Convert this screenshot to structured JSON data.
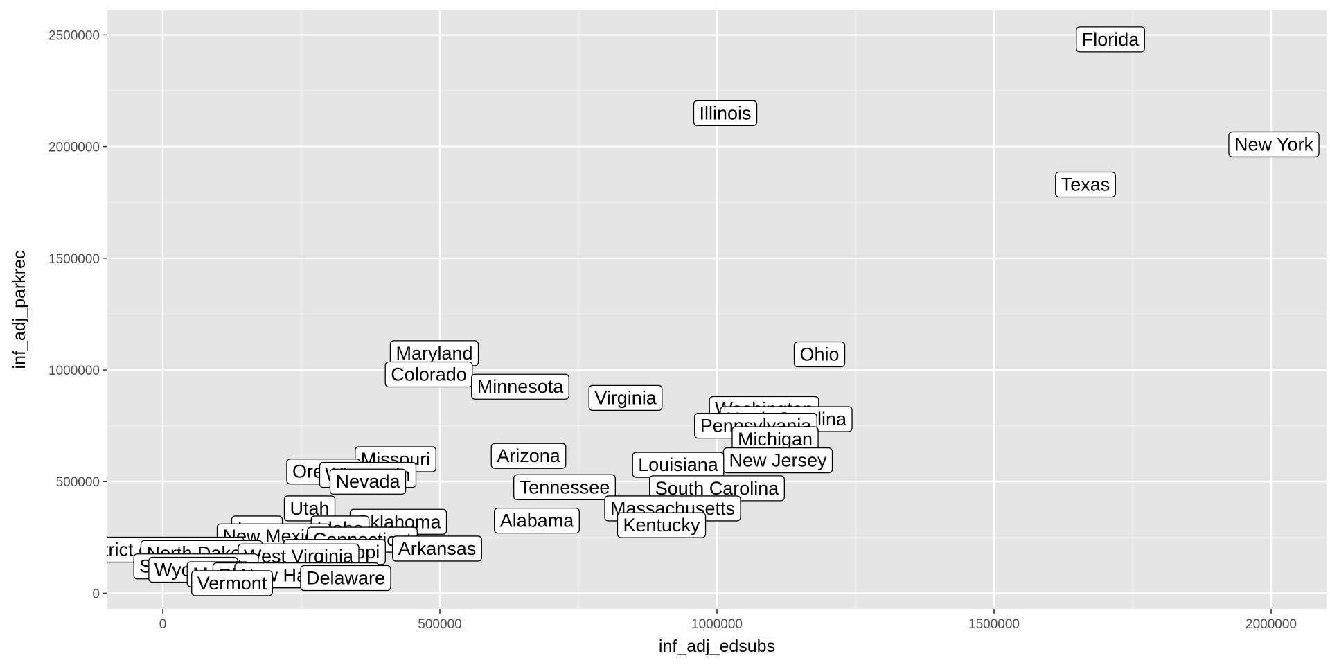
{
  "chart_data": {
    "type": "scatter",
    "title": "",
    "xlabel": "inf_adj_edsubs",
    "ylabel": "inf_adj_parkrec",
    "xlim": [
      -100000,
      2100000
    ],
    "ylim": [
      -70000,
      2610000
    ],
    "x_ticks": [
      0,
      500000,
      1000000,
      1500000,
      2000000
    ],
    "x_tick_labels": [
      "0",
      "500000",
      "1000000",
      "1500000",
      "2000000"
    ],
    "y_ticks": [
      0,
      500000,
      1000000,
      1500000,
      2000000,
      2500000
    ],
    "y_tick_labels": [
      "0",
      "500000",
      "1000000",
      "1500000",
      "2000000",
      "2500000"
    ],
    "grid": true,
    "background": "#e5e5e5",
    "points": [
      {
        "label": "Florida",
        "x": 1710000,
        "y": 2480000
      },
      {
        "label": "Illinois",
        "x": 1015000,
        "y": 2150000
      },
      {
        "label": "New York",
        "x": 2005000,
        "y": 2010000
      },
      {
        "label": "Texas",
        "x": 1665000,
        "y": 1830000
      },
      {
        "label": "Maryland",
        "x": 490000,
        "y": 1075000
      },
      {
        "label": "Ohio",
        "x": 1185000,
        "y": 1070000
      },
      {
        "label": "Colorado",
        "x": 480000,
        "y": 980000
      },
      {
        "label": "Minnesota",
        "x": 645000,
        "y": 925000
      },
      {
        "label": "Virginia",
        "x": 835000,
        "y": 875000
      },
      {
        "label": "Washington",
        "x": 1085000,
        "y": 825000
      },
      {
        "label": "North Carolina",
        "x": 1125000,
        "y": 780000
      },
      {
        "label": "Pennsylvania",
        "x": 1070000,
        "y": 750000
      },
      {
        "label": "Michigan",
        "x": 1105000,
        "y": 690000
      },
      {
        "label": "New Jersey",
        "x": 1110000,
        "y": 595000
      },
      {
        "label": "Missouri",
        "x": 420000,
        "y": 600000
      },
      {
        "label": "Arizona",
        "x": 660000,
        "y": 615000
      },
      {
        "label": "Oregon",
        "x": 290000,
        "y": 545000
      },
      {
        "label": "Wisconsin",
        "x": 370000,
        "y": 530000
      },
      {
        "label": "Louisiana",
        "x": 930000,
        "y": 575000
      },
      {
        "label": "Nevada",
        "x": 370000,
        "y": 500000
      },
      {
        "label": "Tennessee",
        "x": 725000,
        "y": 475000
      },
      {
        "label": "South Carolina",
        "x": 1000000,
        "y": 470000
      },
      {
        "label": "Utah",
        "x": 265000,
        "y": 380000
      },
      {
        "label": "Massachusetts",
        "x": 920000,
        "y": 380000
      },
      {
        "label": "Alabama",
        "x": 675000,
        "y": 325000
      },
      {
        "label": "Oklahoma",
        "x": 425000,
        "y": 320000
      },
      {
        "label": "Kentucky",
        "x": 900000,
        "y": 305000
      },
      {
        "label": "Iowa",
        "x": 170000,
        "y": 290000
      },
      {
        "label": "Idaho",
        "x": 320000,
        "y": 290000
      },
      {
        "label": "New Mexico",
        "x": 200000,
        "y": 255000
      },
      {
        "label": "Connecticut",
        "x": 360000,
        "y": 240000
      },
      {
        "label": "Arkansas",
        "x": 495000,
        "y": 200000
      },
      {
        "label": "District of Columbia",
        "x": -10000,
        "y": 195000
      },
      {
        "label": "North Dakota",
        "x": 70000,
        "y": 180000
      },
      {
        "label": "Mississippi",
        "x": 310000,
        "y": 185000
      },
      {
        "label": "West Virginia",
        "x": 245000,
        "y": 165000
      },
      {
        "label": "South Dakota",
        "x": 60000,
        "y": 120000
      },
      {
        "label": "Wyoming",
        "x": 55000,
        "y": 105000
      },
      {
        "label": "Maine",
        "x": 100000,
        "y": 85000
      },
      {
        "label": "Rhode Island",
        "x": 200000,
        "y": 80000
      },
      {
        "label": "New Hampshire",
        "x": 260000,
        "y": 80000
      },
      {
        "label": "Delaware",
        "x": 330000,
        "y": 68000
      },
      {
        "label": "Vermont",
        "x": 125000,
        "y": 45000
      }
    ]
  }
}
